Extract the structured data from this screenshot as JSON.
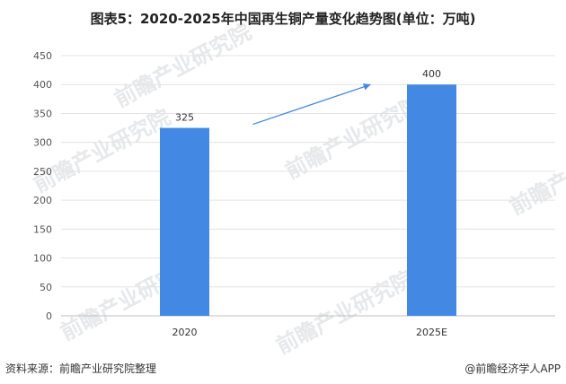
{
  "title": "图表5：2020-2025年中国再生铜产量变化趋势图(单位：万吨)",
  "footer": {
    "source": "资料来源：前瞻产业研究院整理",
    "brand": "@前瞻经济学人APP"
  },
  "watermark": "前瞻产业研究院",
  "chart_data": {
    "type": "bar",
    "title": "图表5：2020-2025年中国再生铜产量变化趋势图(单位：万吨)",
    "categories": [
      "2020",
      "2025E"
    ],
    "values": [
      325,
      400
    ],
    "data_labels": [
      "325",
      "400"
    ],
    "ylim": [
      0,
      450
    ],
    "yticks": [
      0,
      50,
      100,
      150,
      200,
      250,
      300,
      350,
      400,
      450
    ],
    "grid": true,
    "legend": "none",
    "bar_color": "#4388e3",
    "annotation": "upward trend arrow from 2020 bar to 2025E bar"
  }
}
